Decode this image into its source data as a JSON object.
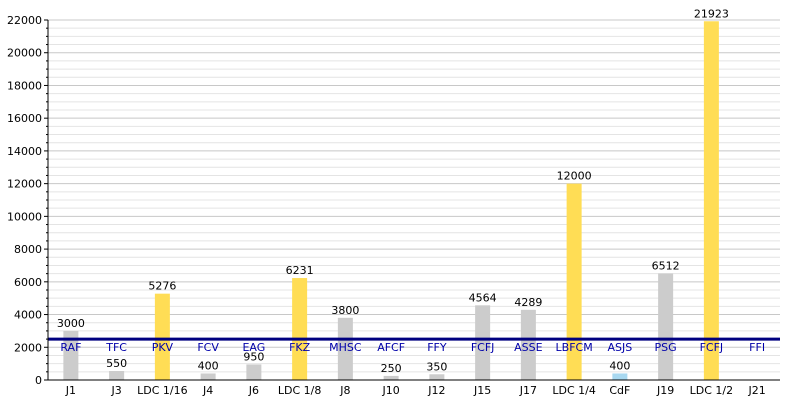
{
  "chart_data": {
    "type": "bar",
    "ylim": [
      0,
      22000
    ],
    "y_ticks": [
      0,
      2000,
      4000,
      6000,
      8000,
      10000,
      12000,
      14000,
      16000,
      18000,
      20000,
      22000
    ],
    "grid": true,
    "average_line": 2500,
    "colors": {
      "league": "#cccccc",
      "cup": "#ffdd55",
      "cdf": "#a8d8f0",
      "average": "#000080",
      "team": "#0000aa"
    },
    "bars": [
      {
        "category": "J1",
        "team": "RAF",
        "value": 3000,
        "kind": "league"
      },
      {
        "category": "J3",
        "team": "TFC",
        "value": 550,
        "kind": "league"
      },
      {
        "category": "LDC 1/16",
        "team": "PKV",
        "value": 5276,
        "kind": "cup"
      },
      {
        "category": "J4",
        "team": "FCV",
        "value": 400,
        "kind": "league"
      },
      {
        "category": "J6",
        "team": "EAG",
        "value": 950,
        "kind": "league"
      },
      {
        "category": "LDC 1/8",
        "team": "FKZ",
        "value": 6231,
        "kind": "cup"
      },
      {
        "category": "J8",
        "team": "MHSC",
        "value": 3800,
        "kind": "league"
      },
      {
        "category": "J10",
        "team": "AFCF",
        "value": 250,
        "kind": "league"
      },
      {
        "category": "J12",
        "team": "FFY",
        "value": 350,
        "kind": "league"
      },
      {
        "category": "J15",
        "team": "FCFJ",
        "value": 4564,
        "kind": "league"
      },
      {
        "category": "J17",
        "team": "ASSE",
        "value": 4289,
        "kind": "league"
      },
      {
        "category": "LDC 1/4",
        "team": "LBFCM",
        "value": 12000,
        "kind": "cup"
      },
      {
        "category": "CdF",
        "team": "ASJS",
        "value": 400,
        "kind": "cdf"
      },
      {
        "category": "J19",
        "team": "PSG",
        "value": 6512,
        "kind": "league"
      },
      {
        "category": "LDC 1/2",
        "team": "FCFJ",
        "value": 21923,
        "kind": "cup"
      },
      {
        "category": "J21",
        "team": "FFI",
        "value": null,
        "kind": "league"
      }
    ]
  }
}
